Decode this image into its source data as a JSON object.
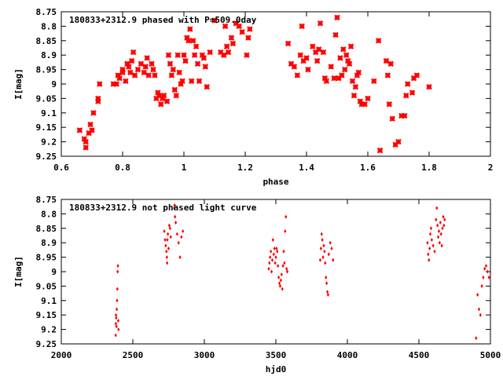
{
  "chart_data": [
    {
      "type": "scatter",
      "title": "180833+2312.9 phased with P=509.0day",
      "xlabel": "phase",
      "ylabel": "I[mag]",
      "xlim": [
        0.6,
        2.0
      ],
      "ylim": [
        9.25,
        8.75
      ],
      "y_inverted": true,
      "grid": false,
      "marker": "cross",
      "color": "#ff0000",
      "x_ticks": [
        "0.6",
        "0.8",
        "1",
        "1.2",
        "1.4",
        "1.6",
        "1.8",
        "2"
      ],
      "x_tick_values": [
        0.6,
        0.8,
        1.0,
        1.2,
        1.4,
        1.6,
        1.8,
        2.0
      ],
      "y_ticks": [
        "8.75",
        "8.8",
        "8.85",
        "8.9",
        "8.95",
        "9",
        "9.05",
        "9.1",
        "9.15",
        "9.2",
        "9.25"
      ],
      "y_tick_values": [
        8.75,
        8.8,
        8.85,
        8.9,
        8.95,
        9.0,
        9.05,
        9.1,
        9.15,
        9.2,
        9.25
      ],
      "points": [
        [
          0.66,
          9.16
        ],
        [
          0.675,
          9.19
        ],
        [
          0.68,
          9.2
        ],
        [
          0.68,
          9.22
        ],
        [
          0.69,
          9.17
        ],
        [
          0.695,
          9.14
        ],
        [
          0.7,
          9.16
        ],
        [
          0.705,
          9.1
        ],
        [
          0.72,
          9.05
        ],
        [
          0.72,
          9.06
        ],
        [
          0.725,
          9.0
        ],
        [
          0.77,
          9.0
        ],
        [
          0.78,
          9.0
        ],
        [
          0.785,
          8.97
        ],
        [
          0.79,
          8.98
        ],
        [
          0.8,
          8.96
        ],
        [
          0.8,
          8.95
        ],
        [
          0.81,
          8.99
        ],
        [
          0.815,
          8.93
        ],
        [
          0.82,
          8.94
        ],
        [
          0.825,
          8.96
        ],
        [
          0.83,
          8.92
        ],
        [
          0.835,
          8.89
        ],
        [
          0.84,
          8.97
        ],
        [
          0.85,
          8.95
        ],
        [
          0.86,
          8.93
        ],
        [
          0.87,
          8.96
        ],
        [
          0.875,
          8.94
        ],
        [
          0.88,
          8.91
        ],
        [
          0.885,
          8.97
        ],
        [
          0.895,
          8.93
        ],
        [
          0.9,
          8.95
        ],
        [
          0.905,
          8.97
        ],
        [
          0.91,
          9.05
        ],
        [
          0.915,
          9.03
        ],
        [
          0.92,
          9.04
        ],
        [
          0.925,
          9.07
        ],
        [
          0.93,
          9.05
        ],
        [
          0.935,
          9.04
        ],
        [
          0.945,
          9.06
        ],
        [
          0.95,
          8.9
        ],
        [
          0.955,
          8.93
        ],
        [
          0.96,
          8.97
        ],
        [
          0.965,
          8.95
        ],
        [
          0.97,
          9.02
        ],
        [
          0.975,
          9.04
        ],
        [
          0.98,
          8.9
        ],
        [
          0.985,
          8.96
        ],
        [
          0.99,
          9.0
        ],
        [
          0.995,
          8.99
        ],
        [
          1.0,
          8.9
        ],
        [
          1.005,
          8.92
        ],
        [
          1.01,
          8.84
        ],
        [
          1.015,
          8.85
        ],
        [
          1.02,
          8.81
        ],
        [
          1.025,
          8.99
        ],
        [
          1.03,
          8.85
        ],
        [
          1.035,
          8.9
        ],
        [
          1.04,
          8.87
        ],
        [
          1.045,
          8.93
        ],
        [
          1.05,
          8.99
        ],
        [
          1.06,
          8.9
        ],
        [
          1.065,
          8.91
        ],
        [
          1.07,
          8.94
        ],
        [
          1.075,
          9.01
        ],
        [
          1.085,
          8.89
        ],
        [
          1.1,
          8.78
        ],
        [
          1.12,
          8.89
        ],
        [
          1.13,
          8.9
        ],
        [
          1.135,
          8.8
        ],
        [
          1.14,
          8.87
        ],
        [
          1.145,
          8.89
        ],
        [
          1.155,
          8.84
        ],
        [
          1.16,
          8.86
        ],
        [
          1.17,
          8.79
        ],
        [
          1.18,
          8.8
        ],
        [
          1.19,
          8.82
        ],
        [
          1.205,
          8.9
        ],
        [
          1.21,
          8.84
        ],
        [
          1.215,
          8.81
        ],
        [
          1.34,
          8.86
        ],
        [
          1.35,
          8.93
        ],
        [
          1.36,
          8.94
        ],
        [
          1.37,
          8.97
        ],
        [
          1.38,
          8.9
        ],
        [
          1.385,
          8.8
        ],
        [
          1.39,
          8.92
        ],
        [
          1.4,
          8.91
        ],
        [
          1.405,
          8.95
        ],
        [
          1.42,
          8.87
        ],
        [
          1.43,
          8.89
        ],
        [
          1.435,
          8.92
        ],
        [
          1.44,
          8.88
        ],
        [
          1.445,
          8.79
        ],
        [
          1.455,
          8.89
        ],
        [
          1.46,
          8.98
        ],
        [
          1.465,
          8.99
        ],
        [
          1.48,
          8.94
        ],
        [
          1.49,
          8.98
        ],
        [
          1.495,
          8.83
        ],
        [
          1.5,
          8.77
        ],
        [
          1.505,
          8.98
        ],
        [
          1.51,
          8.91
        ],
        [
          1.515,
          8.97
        ],
        [
          1.52,
          8.88
        ],
        [
          1.525,
          8.95
        ],
        [
          1.53,
          8.9
        ],
        [
          1.535,
          8.92
        ],
        [
          1.54,
          8.93
        ],
        [
          1.545,
          8.87
        ],
        [
          1.55,
          8.99
        ],
        [
          1.555,
          9.04
        ],
        [
          1.56,
          9.01
        ],
        [
          1.565,
          8.97
        ],
        [
          1.57,
          8.96
        ],
        [
          1.575,
          9.06
        ],
        [
          1.58,
          9.07
        ],
        [
          1.59,
          9.07
        ],
        [
          1.6,
          9.05
        ],
        [
          1.62,
          8.99
        ],
        [
          1.635,
          8.85
        ],
        [
          1.64,
          9.23
        ],
        [
          1.66,
          8.92
        ],
        [
          1.665,
          8.97
        ],
        [
          1.67,
          9.07
        ],
        [
          1.675,
          8.93
        ],
        [
          1.68,
          9.12
        ],
        [
          1.69,
          9.21
        ],
        [
          1.7,
          9.2
        ],
        [
          1.71,
          9.11
        ],
        [
          1.72,
          9.11
        ],
        [
          1.725,
          9.04
        ],
        [
          1.73,
          9.0
        ],
        [
          1.745,
          9.03
        ],
        [
          1.75,
          8.98
        ],
        [
          1.76,
          8.97
        ],
        [
          1.8,
          9.01
        ]
      ]
    },
    {
      "type": "scatter",
      "title": "180833+2312.9 not phased light curve",
      "xlabel": "hjd0",
      "ylabel": "I[mag]",
      "xlim": [
        2000,
        5000
      ],
      "ylim": [
        9.25,
        8.75
      ],
      "y_inverted": true,
      "grid": false,
      "marker": "dot",
      "color": "#ff0000",
      "x_ticks": [
        "2000",
        "2500",
        "3000",
        "3500",
        "4000",
        "4500",
        "5000"
      ],
      "x_tick_values": [
        2000,
        2500,
        3000,
        3500,
        4000,
        4500,
        5000
      ],
      "y_ticks": [
        "8.75",
        "8.8",
        "8.85",
        "8.9",
        "8.95",
        "9",
        "9.05",
        "9.1",
        "9.15",
        "9.2",
        "9.25"
      ],
      "y_tick_values": [
        8.75,
        8.8,
        8.85,
        8.9,
        8.95,
        9.0,
        9.05,
        9.1,
        9.15,
        9.2,
        9.25
      ],
      "points": [
        [
          2380,
          9.22
        ],
        [
          2381,
          9.18
        ],
        [
          2382,
          9.15
        ],
        [
          2384,
          9.16
        ],
        [
          2386,
          9.19
        ],
        [
          2388,
          9.13
        ],
        [
          2390,
          9.1
        ],
        [
          2392,
          9.06
        ],
        [
          2394,
          9.0
        ],
        [
          2396,
          8.98
        ],
        [
          2398,
          9.17
        ],
        [
          2400,
          9.2
        ],
        [
          2720,
          8.86
        ],
        [
          2725,
          8.89
        ],
        [
          2730,
          8.91
        ],
        [
          2735,
          8.93
        ],
        [
          2738,
          8.95
        ],
        [
          2740,
          8.97
        ],
        [
          2742,
          8.89
        ],
        [
          2745,
          8.87
        ],
        [
          2750,
          8.92
        ],
        [
          2755,
          8.84
        ],
        [
          2760,
          8.85
        ],
        [
          2765,
          8.88
        ],
        [
          2790,
          8.78
        ],
        [
          2792,
          8.77
        ],
        [
          2795,
          8.81
        ],
        [
          2800,
          8.83
        ],
        [
          2810,
          8.87
        ],
        [
          2820,
          8.9
        ],
        [
          2830,
          8.95
        ],
        [
          2840,
          8.88
        ],
        [
          2850,
          8.86
        ],
        [
          3450,
          8.99
        ],
        [
          3455,
          8.97
        ],
        [
          3460,
          8.95
        ],
        [
          3465,
          8.93
        ],
        [
          3470,
          9.0
        ],
        [
          3475,
          8.96
        ],
        [
          3480,
          8.89
        ],
        [
          3485,
          8.94
        ],
        [
          3490,
          8.92
        ],
        [
          3495,
          8.97
        ],
        [
          3500,
          8.95
        ],
        [
          3505,
          8.92
        ],
        [
          3510,
          8.93
        ],
        [
          3515,
          8.98
        ],
        [
          3520,
          9.02
        ],
        [
          3525,
          9.04
        ],
        [
          3530,
          9.05
        ],
        [
          3535,
          9.03
        ],
        [
          3540,
          9.01
        ],
        [
          3545,
          9.06
        ],
        [
          3550,
          8.98
        ],
        [
          3555,
          8.93
        ],
        [
          3560,
          8.97
        ],
        [
          3565,
          8.86
        ],
        [
          3570,
          8.81
        ],
        [
          3575,
          8.99
        ],
        [
          3580,
          9.0
        ],
        [
          3810,
          8.96
        ],
        [
          3815,
          8.92
        ],
        [
          3820,
          8.87
        ],
        [
          3825,
          8.89
        ],
        [
          3830,
          8.95
        ],
        [
          3835,
          8.91
        ],
        [
          3840,
          8.93
        ],
        [
          3845,
          8.97
        ],
        [
          3850,
          9.02
        ],
        [
          3855,
          9.04
        ],
        [
          3860,
          9.07
        ],
        [
          3865,
          9.08
        ],
        [
          3870,
          8.94
        ],
        [
          3880,
          8.9
        ],
        [
          3890,
          8.92
        ],
        [
          3900,
          8.96
        ],
        [
          4560,
          8.9
        ],
        [
          4565,
          8.94
        ],
        [
          4570,
          8.96
        ],
        [
          4575,
          8.92
        ],
        [
          4580,
          8.87
        ],
        [
          4585,
          8.85
        ],
        [
          4590,
          8.89
        ],
        [
          4600,
          8.91
        ],
        [
          4610,
          8.93
        ],
        [
          4620,
          8.82
        ],
        [
          4625,
          8.78
        ],
        [
          4630,
          8.84
        ],
        [
          4635,
          8.88
        ],
        [
          4640,
          8.86
        ],
        [
          4645,
          8.9
        ],
        [
          4650,
          8.83
        ],
        [
          4655,
          8.87
        ],
        [
          4660,
          8.91
        ],
        [
          4665,
          8.85
        ],
        [
          4670,
          8.81
        ],
        [
          4675,
          8.84
        ],
        [
          4680,
          8.82
        ],
        [
          4900,
          9.23
        ],
        [
          4910,
          9.08
        ],
        [
          4920,
          9.13
        ],
        [
          4930,
          9.15
        ],
        [
          4940,
          9.05
        ],
        [
          4950,
          9.02
        ],
        [
          4960,
          8.99
        ],
        [
          4970,
          8.98
        ],
        [
          4980,
          9.0
        ],
        [
          4990,
          9.02
        ]
      ]
    }
  ]
}
